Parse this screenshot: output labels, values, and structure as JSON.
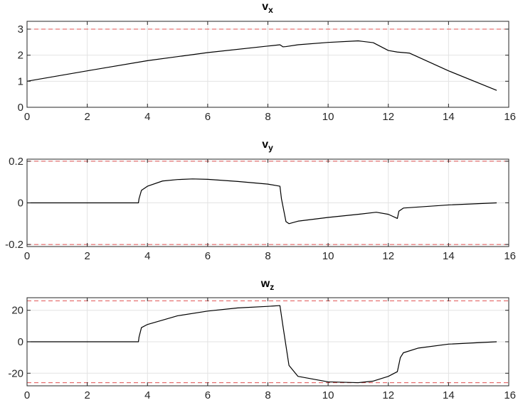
{
  "chart_data": [
    {
      "type": "line",
      "title": "v",
      "title_subscript": "x",
      "xlim": [
        0,
        16
      ],
      "ylim": [
        0,
        3.3
      ],
      "x_ticks": [
        0,
        2,
        4,
        6,
        8,
        10,
        12,
        14,
        16
      ],
      "y_ticks": [
        0,
        1,
        2,
        3
      ],
      "y_tick_labels": [
        "0",
        "1",
        "2",
        "3"
      ],
      "grid": true,
      "bounds": [
        0,
        3
      ],
      "bound_color": "#e05050",
      "series": [
        {
          "color": "#000000",
          "x": [
            0,
            2,
            4,
            6,
            8,
            8.4,
            8.5,
            8.6,
            9,
            10,
            11,
            11.5,
            12,
            12.3,
            12.7,
            14,
            15.6
          ],
          "y": [
            1.0,
            1.4,
            1.79,
            2.1,
            2.35,
            2.4,
            2.32,
            2.33,
            2.4,
            2.49,
            2.55,
            2.48,
            2.18,
            2.12,
            2.08,
            1.4,
            0.65
          ]
        }
      ]
    },
    {
      "type": "line",
      "title": "v",
      "title_subscript": "y",
      "xlim": [
        0,
        16
      ],
      "ylim": [
        -0.21,
        0.21
      ],
      "x_ticks": [
        0,
        2,
        4,
        6,
        8,
        10,
        12,
        14,
        16
      ],
      "y_ticks": [
        -0.2,
        0,
        0.2
      ],
      "y_tick_labels": [
        "-0.2",
        "0",
        "0.2"
      ],
      "grid": true,
      "bounds": [
        -0.2,
        0.2
      ],
      "bound_color": "#e05050",
      "series": [
        {
          "color": "#000000",
          "x": [
            0,
            3.7,
            3.72,
            3.8,
            4.0,
            4.5,
            5,
            5.5,
            6,
            7,
            8,
            8.4,
            8.45,
            8.6,
            8.7,
            9.0,
            10,
            11,
            11.6,
            12,
            12.3,
            12.35,
            12.5,
            14,
            15.6
          ],
          "y": [
            0,
            0,
            0.02,
            0.06,
            0.08,
            0.105,
            0.112,
            0.115,
            0.113,
            0.103,
            0.09,
            0.08,
            0.02,
            -0.09,
            -0.1,
            -0.088,
            -0.07,
            -0.055,
            -0.045,
            -0.055,
            -0.075,
            -0.04,
            -0.025,
            -0.01,
            0.0
          ]
        }
      ]
    },
    {
      "type": "line",
      "title": "w",
      "title_subscript": "z",
      "xlim": [
        0,
        16
      ],
      "ylim": [
        -28,
        28
      ],
      "x_ticks": [
        0,
        2,
        4,
        6,
        8,
        10,
        12,
        14,
        16
      ],
      "y_ticks": [
        -20,
        0,
        20
      ],
      "y_tick_labels": [
        "-20",
        "0",
        "20"
      ],
      "grid": true,
      "bounds": [
        -26,
        26
      ],
      "bound_color": "#e05050",
      "series": [
        {
          "color": "#000000",
          "x": [
            0,
            3.7,
            3.72,
            3.8,
            4.0,
            5,
            6,
            7,
            8,
            8.4,
            8.5,
            8.7,
            9,
            10,
            11,
            11.5,
            12,
            12.3,
            12.4,
            12.5,
            13,
            14,
            15.6
          ],
          "y": [
            0,
            0,
            3,
            9,
            11,
            16.5,
            19.5,
            21.5,
            22.5,
            23,
            10,
            -15,
            -22,
            -25.5,
            -26,
            -25,
            -22,
            -19,
            -10,
            -7,
            -4,
            -1.5,
            0
          ]
        }
      ]
    }
  ]
}
